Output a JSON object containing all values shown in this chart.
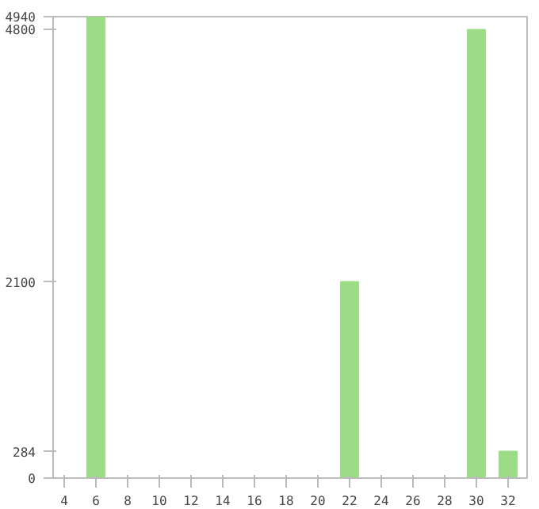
{
  "chart_data": {
    "type": "bar",
    "x": [
      6,
      22,
      30,
      32
    ],
    "values": [
      4940,
      2100,
      4800,
      284
    ],
    "color": "#9ddc87",
    "xlim": [
      3.3,
      33.2
    ],
    "xticks": [
      4,
      6,
      8,
      10,
      12,
      14,
      16,
      18,
      20,
      22,
      24,
      26,
      28,
      30,
      32
    ],
    "ylim": [
      0,
      4940
    ],
    "yticks": [
      0,
      284,
      2100,
      4800,
      4940
    ],
    "grid": false
  }
}
